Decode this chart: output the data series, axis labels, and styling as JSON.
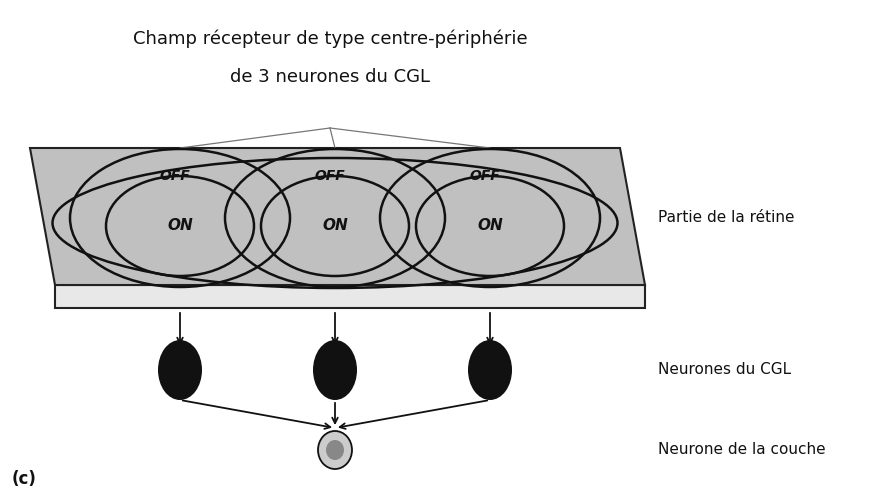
{
  "title_line1": "Champ récepteur de type centre-périphérie",
  "title_line2": "de 3 neurones du CGL",
  "label_retine": "Partie de la rétine",
  "label_cgl": "Neurones du CGL",
  "label_neurone": "Neurone de la couche",
  "label_c": "(c)",
  "bg_color": "#ffffff",
  "plate_top_color": "#c0c0c0",
  "plate_side_color": "#e8e8e8",
  "plate_edge_color": "#222222",
  "text_on": "ON",
  "text_off": "OFF",
  "ellipse_edge": "#111111",
  "neuron_dark": "#111111",
  "neuron_gray": "#888888",
  "neuron_light": "#cccccc"
}
